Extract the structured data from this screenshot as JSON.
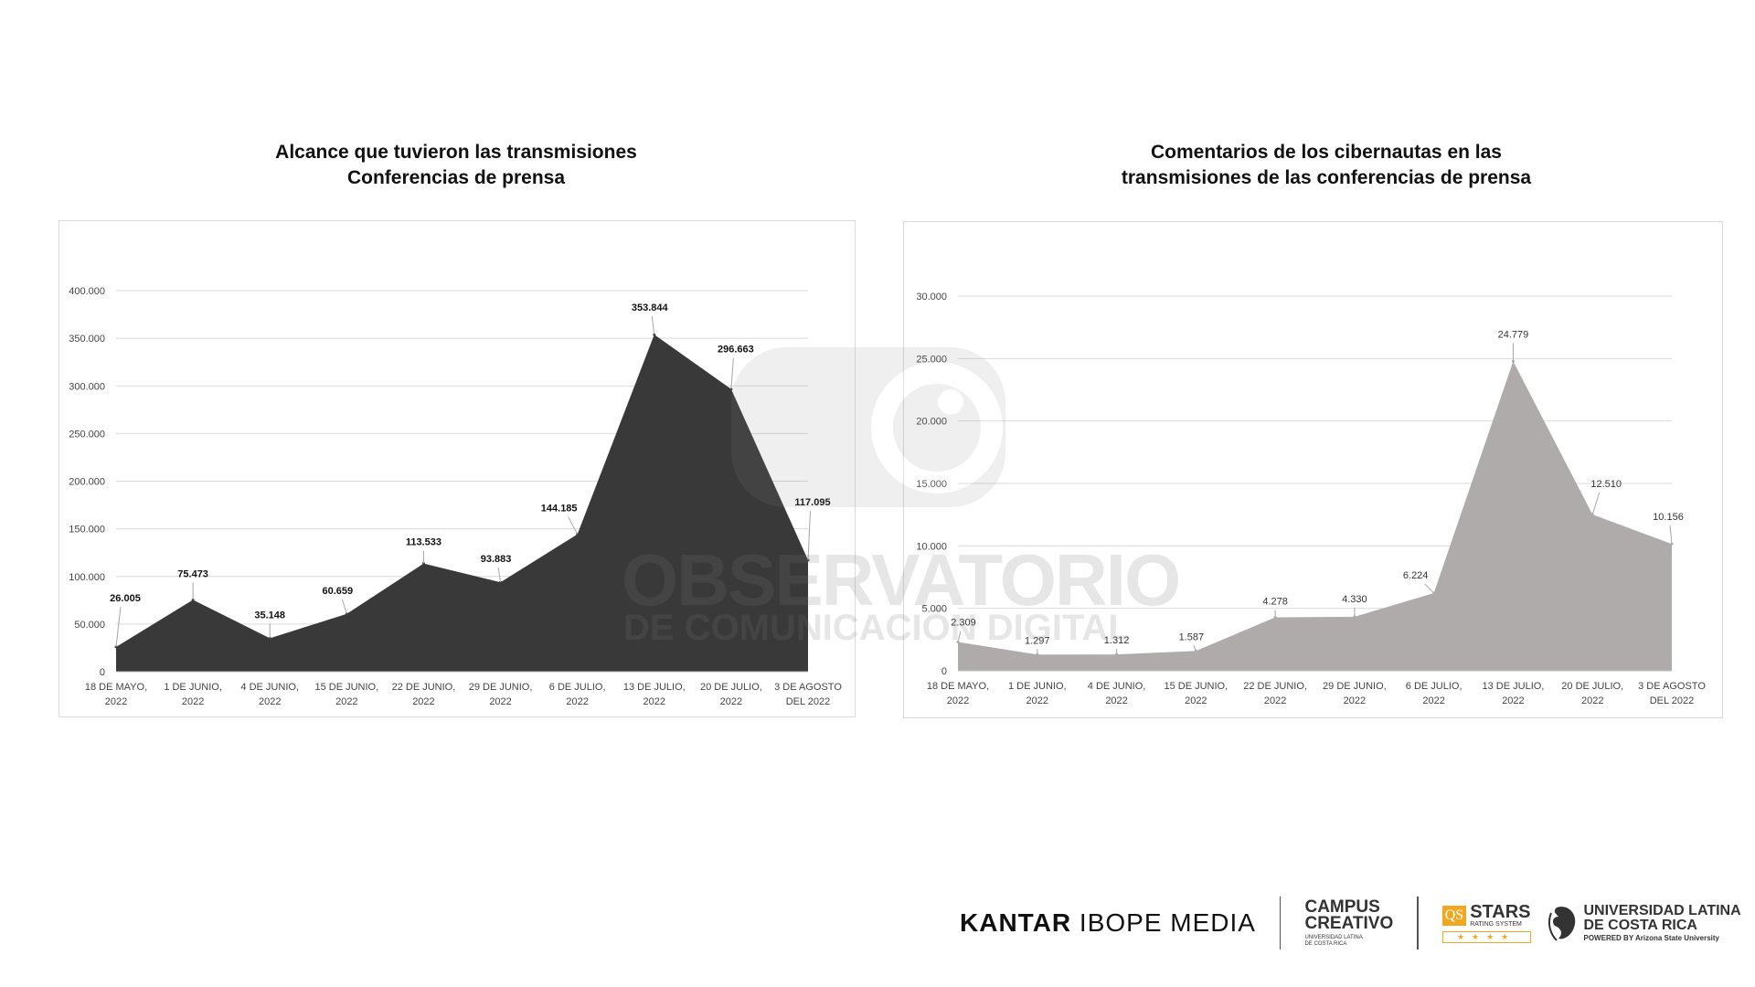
{
  "watermark": {
    "line1": "OBSERVATORIO",
    "line2": "DE COMUNICACIÓN DIGITAL"
  },
  "chart_data": [
    {
      "type": "area",
      "title": [
        "Alcance que tuvieron las transmisiones",
        "Conferencias de prensa"
      ],
      "categories": [
        [
          "18 DE MAYO,",
          "2022"
        ],
        [
          "1 DE JUNIO,",
          "2022"
        ],
        [
          "4 DE JUNIO,",
          "2022"
        ],
        [
          "15 DE JUNIO,",
          "2022"
        ],
        [
          "22 DE JUNIO,",
          "2022"
        ],
        [
          "29 DE JUNIO,",
          "2022"
        ],
        [
          "6 DE JULIO,",
          "2022"
        ],
        [
          "13 DE JULIO,",
          "2022"
        ],
        [
          "20 DE JULIO,",
          "2022"
        ],
        [
          "3 DE AGOSTO",
          "DEL 2022"
        ]
      ],
      "values": [
        26005,
        75473,
        35148,
        60659,
        113533,
        93883,
        144185,
        353844,
        296663,
        117095
      ],
      "data_labels": [
        "26.005",
        "75.473",
        "35.148",
        "60.659",
        "113.533",
        "93.883",
        "144.185",
        "353.844",
        "296.663",
        "117.095"
      ],
      "yticks": [
        0,
        50000,
        100000,
        150000,
        200000,
        250000,
        300000,
        350000,
        400000
      ],
      "ytick_labels": [
        "0",
        "50.000",
        "100.000",
        "150.000",
        "200.000",
        "250.000",
        "300.000",
        "350.000",
        "400.000"
      ],
      "ylim": [
        0,
        400000
      ],
      "grid": true,
      "color": "#3a393a"
    },
    {
      "type": "area",
      "title": [
        "Comentarios de los cibernautas en las",
        "transmisiones de las conferencias de prensa"
      ],
      "categories": [
        [
          "18 DE MAYO,",
          "2022"
        ],
        [
          "1 DE JUNIO,",
          "2022"
        ],
        [
          "4 DE JUNIO,",
          "2022"
        ],
        [
          "15 DE JUNIO,",
          "2022"
        ],
        [
          "22 DE JUNIO,",
          "2022"
        ],
        [
          "29 DE JUNIO,",
          "2022"
        ],
        [
          "6 DE JULIO,",
          "2022"
        ],
        [
          "13 DE JULIO,",
          "2022"
        ],
        [
          "20 DE JULIO,",
          "2022"
        ],
        [
          "3 DE AGOSTO",
          "DEL 2022"
        ]
      ],
      "values": [
        2309,
        1297,
        1312,
        1587,
        4278,
        4330,
        6224,
        24779,
        12510,
        10156
      ],
      "data_labels": [
        "2.309",
        "1.297",
        "1.312",
        "1.587",
        "4.278",
        "4.330",
        "6.224",
        "24.779",
        "12.510",
        "10.156"
      ],
      "yticks": [
        0,
        5000,
        10000,
        15000,
        20000,
        25000,
        30000
      ],
      "ytick_labels": [
        "0",
        "5.000",
        "10.000",
        "15.000",
        "20.000",
        "25.000",
        "30.000"
      ],
      "ylim": [
        0,
        30000
      ],
      "grid": true,
      "color": "#afabab"
    }
  ],
  "logos": {
    "kantar": {
      "bold": "KANTAR",
      "rest": "IBOPE MEDIA"
    },
    "campus": {
      "line1": "CAMPUS",
      "line2": "CREATIVO",
      "sub1": "UNIVERSIDAD LATINA",
      "sub2": "DE COSTA RICA"
    },
    "qs": {
      "badge": "QS",
      "stars": "STARS",
      "sub": "RATING SYSTEM",
      "rating": "★★★★"
    },
    "ulatina": {
      "line1": "UNIVERSIDAD LATINA",
      "line2": "DE COSTA RICA",
      "sub": "POWERED BY Arizona State University"
    }
  }
}
